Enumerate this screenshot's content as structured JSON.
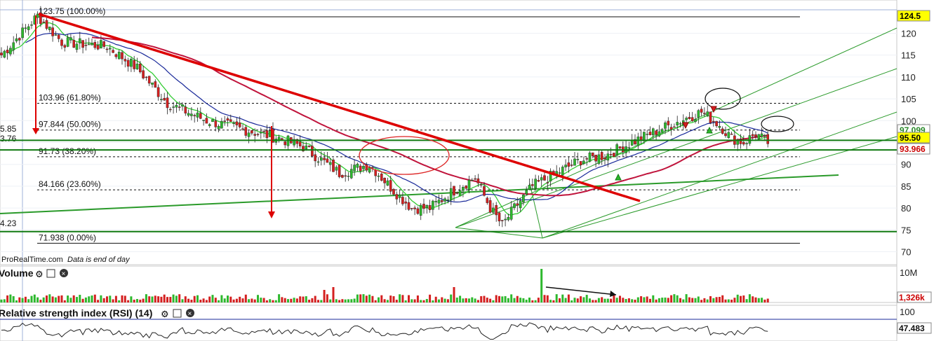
{
  "source_note": {
    "brand": "ProRealTime.com",
    "note": "Data is end of day"
  },
  "price_panel": {
    "y_ticks": [
      "120",
      "115",
      "110",
      "105",
      "100",
      "95",
      "90",
      "85",
      "80",
      "75",
      "70"
    ],
    "fib_levels": [
      {
        "label": "123.75 (100.00%)",
        "value": 123.75
      },
      {
        "label": "103.96 (61.80%)",
        "value": 103.96
      },
      {
        "label": "97.844 (50.00%)",
        "value": 97.844
      },
      {
        "label": "91.73 (38.20%)",
        "value": 91.73
      },
      {
        "label": "84.166 (23.60%)",
        "value": 84.166
      },
      {
        "label": "71.938 (0.00%)",
        "value": 71.938
      }
    ],
    "left_cut_labels": [
      "5.85",
      "3.76",
      "4.23"
    ],
    "price_tags": [
      {
        "text": "124.5",
        "bg": "#ffff00",
        "fg": "#000000",
        "value": 124.5
      },
      {
        "text": "97.099",
        "bg": "#ffffff",
        "fg": "#2a8a2a",
        "value": 97.1
      },
      {
        "text": "95.50",
        "bg": "#ffff00",
        "fg": "#000000",
        "value": 95.5
      },
      {
        "text": "93.966",
        "bg": "#ffffff",
        "fg": "#cc0000",
        "value": 93.966
      }
    ],
    "horizontal_levels": [
      95.5,
      93.3,
      74.6
    ],
    "y_range": [
      68,
      126
    ]
  },
  "volume_panel": {
    "title": "Volume",
    "y_ticks": [
      "10M"
    ],
    "tags": [
      {
        "text": "1,326k",
        "fg": "#cc0000"
      }
    ]
  },
  "rsi_panel": {
    "title": "Relative strength index (RSI) (14)",
    "y_ticks": [
      "100"
    ],
    "tags": [
      {
        "text": "47.483",
        "fg": "#111111"
      }
    ]
  },
  "colors": {
    "up": "#2db82d",
    "down": "#d42020",
    "trend": "#dd0000",
    "channel": "#2a9a2a",
    "ma_short": "#33cc33",
    "ma_mid": "#1a2a9a",
    "ma_long": "#c0143c"
  },
  "chart_data": {
    "type": "candlestick",
    "anchors": [
      [
        0,
        115
      ],
      [
        12,
        124
      ],
      [
        20,
        118
      ],
      [
        35,
        117
      ],
      [
        45,
        112
      ],
      [
        55,
        104
      ],
      [
        68,
        100
      ],
      [
        80,
        98
      ],
      [
        92,
        96
      ],
      [
        100,
        94
      ],
      [
        108,
        90
      ],
      [
        112,
        88
      ],
      [
        122,
        90
      ],
      [
        130,
        84
      ],
      [
        136,
        80
      ],
      [
        142,
        80
      ],
      [
        150,
        84
      ],
      [
        157,
        87
      ],
      [
        162,
        80
      ],
      [
        166,
        76
      ],
      [
        170,
        80
      ],
      [
        176,
        85
      ],
      [
        184,
        88
      ],
      [
        192,
        91
      ],
      [
        200,
        92
      ],
      [
        215,
        97
      ],
      [
        225,
        100
      ],
      [
        232,
        102
      ],
      [
        238,
        99
      ],
      [
        242,
        96
      ],
      [
        246,
        95
      ],
      [
        250,
        97
      ],
      [
        254,
        95
      ]
    ],
    "y_ticks": [
      70,
      75,
      80,
      85,
      90,
      95,
      100,
      105,
      110,
      115,
      120
    ]
  }
}
